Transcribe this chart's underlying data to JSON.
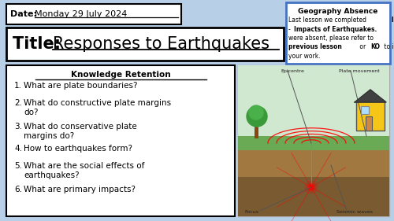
{
  "background_color": "#b8cfe8",
  "date_label": "Date: ",
  "date_value": "Monday 29 July 2024",
  "title_label": "Title: ",
  "title_value": "Responses to Earthquakes",
  "knowledge_title": "Knowledge Retention",
  "knowledge_items": [
    "What are plate boundaries?",
    "What do constructive plate margins\ndo?",
    "What do conservative plate\nmargins do?",
    "How to earthquakes form?",
    "What are the social effects of\nearthquakes?",
    "What are primary impacts?"
  ],
  "absence_title": "Geography Absence",
  "box_bg": "#ffffff",
  "border_color": "#000000",
  "blue_border": "#4472c4"
}
